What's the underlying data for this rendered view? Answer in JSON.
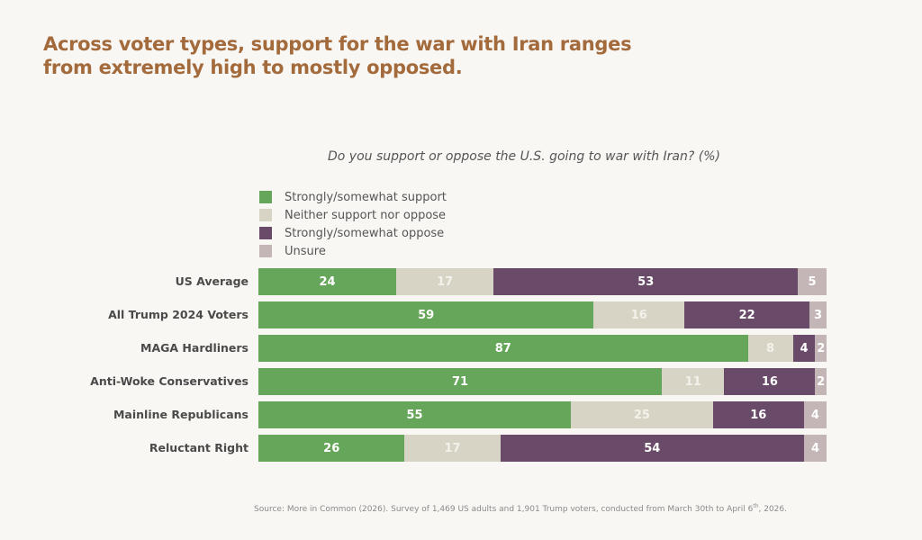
{
  "title": "Across voter types, support for the war with Iran ranges from extremely high to mostly opposed.",
  "source": {
    "before_sup": "Source: More in Common (2026). Survey of 1,469 US adults and 1,901 Trump voters, conducted from March 30th to April 6",
    "sup": "th",
    "after_sup": ", 2026."
  },
  "chart_data": {
    "type": "bar",
    "orientation": "horizontal",
    "stacked": true,
    "title": "Do you support or oppose the U.S. going to war with Iran? (%)",
    "xlabel": "",
    "ylabel": "",
    "legend_position": "top-left",
    "grid": false,
    "categories": [
      "US Average",
      "All Trump 2024 Voters",
      "MAGA Hardliners",
      "Anti-Woke Conservatives",
      "Mainline Republicans",
      "Reluctant Right"
    ],
    "series": [
      {
        "name": "Strongly/somewhat support",
        "key": "support",
        "color": "#66a65a",
        "values": [
          24,
          59,
          87,
          71,
          55,
          26
        ]
      },
      {
        "name": "Neither support nor oppose",
        "key": "neither",
        "color": "#d7d3c5",
        "values": [
          17,
          16,
          8,
          11,
          25,
          17
        ]
      },
      {
        "name": "Strongly/somewhat oppose",
        "key": "oppose",
        "color": "#694a68",
        "values": [
          53,
          22,
          4,
          16,
          16,
          54
        ]
      },
      {
        "name": "Unsure",
        "key": "unsure",
        "color": "#c4b5b7",
        "values": [
          5,
          3,
          2,
          2,
          4,
          4
        ]
      }
    ]
  }
}
